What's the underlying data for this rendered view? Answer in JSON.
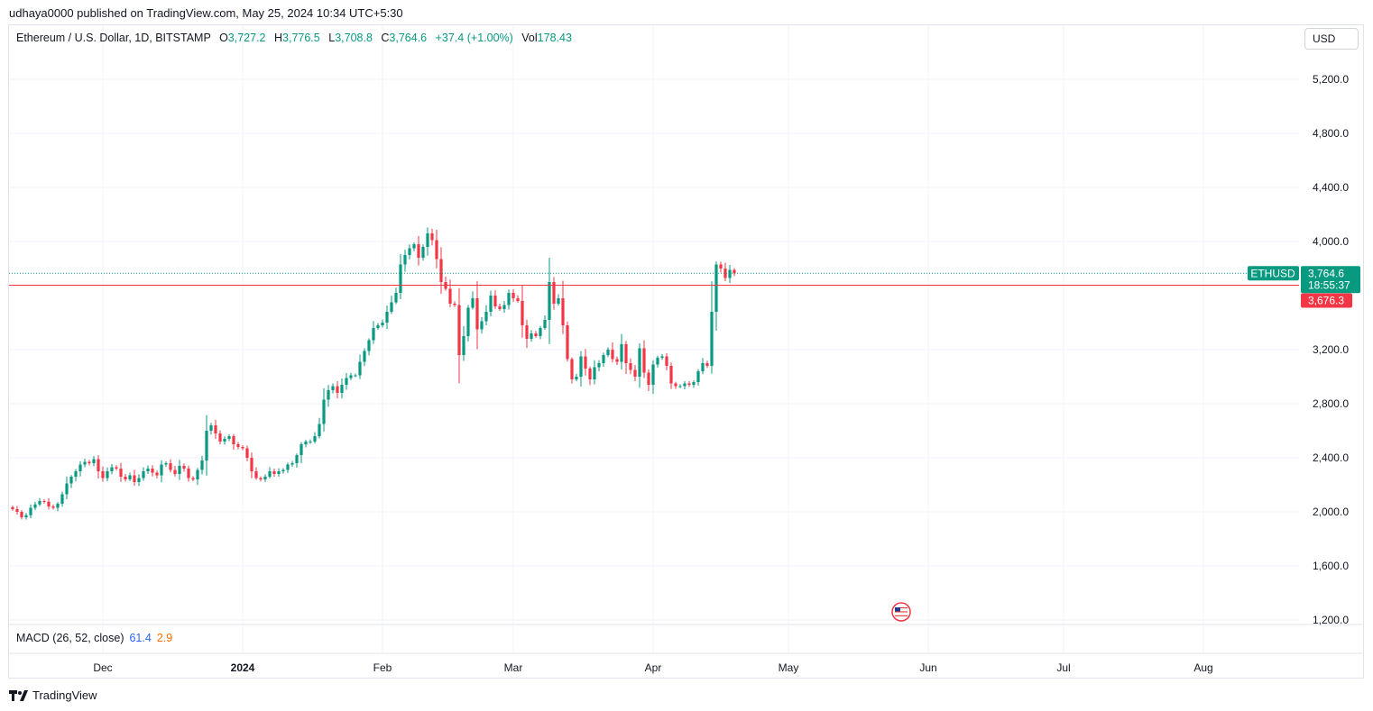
{
  "header": {
    "published": "udhaya0000 published on TradingView.com, May 25, 2024 10:34 UTC+5:30"
  },
  "legend": {
    "symbol": "Ethereum / U.S. Dollar, 1D, BITSTAMP",
    "o_label": "O",
    "o_value": "3,727.2",
    "h_label": "H",
    "h_value": "3,776.5",
    "l_label": "L",
    "l_value": "3,708.8",
    "c_label": "C",
    "c_value": "3,764.6",
    "change": "+37.4 (+1.00%)",
    "vol_label": "Vol",
    "vol_value": "178.43"
  },
  "currency_button": "USD",
  "macd": {
    "label": "MACD (26, 52, close)",
    "v1": "61.4",
    "v2": "2.9"
  },
  "brand": "TradingView",
  "colors": {
    "up": "#089981",
    "down": "#f23645",
    "grid": "#f0f3fa",
    "line": "#f23645"
  },
  "chart_data": {
    "type": "candlestick",
    "title": "Ethereum / U.S. Dollar, 1D, BITSTAMP",
    "ylim": [
      1100,
      5500
    ],
    "y_ticks": [
      {
        "value": 5200,
        "label": "5,200.0"
      },
      {
        "value": 4800,
        "label": "4,800.0"
      },
      {
        "value": 4400,
        "label": "4,400.0"
      },
      {
        "value": 4000,
        "label": "4,000.0"
      },
      {
        "value": 3200,
        "label": "3,200.0"
      },
      {
        "value": 2800,
        "label": "2,800.0"
      },
      {
        "value": 2400,
        "label": "2,400.0"
      },
      {
        "value": 2000,
        "label": "2,000.0"
      },
      {
        "value": 1600,
        "label": "1,600.0"
      },
      {
        "value": 1200,
        "label": "1,200.0"
      }
    ],
    "x_ticks": [
      {
        "day": 20,
        "label": "Dec",
        "bold": false
      },
      {
        "day": 51,
        "label": "2024",
        "bold": true
      },
      {
        "day": 82,
        "label": "Feb",
        "bold": false
      },
      {
        "day": 111,
        "label": "Mar",
        "bold": false
      },
      {
        "day": 142,
        "label": "Apr",
        "bold": false
      },
      {
        "day": 172,
        "label": "May",
        "bold": false
      },
      {
        "day": 203,
        "label": "Jun",
        "bold": false
      },
      {
        "day": 233,
        "label": "Jul",
        "bold": false
      },
      {
        "day": 264,
        "label": "Aug",
        "bold": false
      }
    ],
    "last_price": {
      "value": 3764.6,
      "label": "3,764.6",
      "countdown": "18:55:37",
      "symbol": "ETHUSD"
    },
    "horizontal_line": {
      "value": 3676.3,
      "label": "3,676.3"
    },
    "event_marker_day": 197,
    "closes": [
      2020,
      2000,
      1960,
      1975,
      2030,
      2055,
      2080,
      2075,
      2040,
      2030,
      2060,
      2130,
      2210,
      2260,
      2300,
      2350,
      2370,
      2360,
      2390,
      2300,
      2250,
      2300,
      2330,
      2320,
      2260,
      2240,
      2270,
      2220,
      2250,
      2300,
      2320,
      2290,
      2270,
      2350,
      2360,
      2310,
      2280,
      2340,
      2320,
      2250,
      2240,
      2310,
      2380,
      2600,
      2640,
      2580,
      2520,
      2540,
      2560,
      2500,
      2480,
      2470,
      2400,
      2300,
      2250,
      2240,
      2260,
      2300,
      2280,
      2300,
      2310,
      2350,
      2360,
      2420,
      2500,
      2520,
      2520,
      2560,
      2650,
      2830,
      2900,
      2930,
      2880,
      2940,
      2990,
      3010,
      3010,
      3110,
      3190,
      3270,
      3360,
      3380,
      3400,
      3480,
      3550,
      3620,
      3830,
      3900,
      3950,
      3980,
      3880,
      3960,
      4060,
      4010,
      3870,
      3700,
      3650,
      3540,
      3530,
      3160,
      3300,
      3510,
      3580,
      3350,
      3410,
      3480,
      3600,
      3520,
      3500,
      3530,
      3620,
      3580,
      3560,
      3380,
      3280,
      3320,
      3300,
      3360,
      3420,
      3700,
      3540,
      3580,
      3380,
      3130,
      2980,
      3000,
      3150,
      3060,
      2980,
      3070,
      3100,
      3160,
      3200,
      3130,
      3110,
      3240,
      3100,
      3050,
      3000,
      3210,
      3030,
      2940,
      3090,
      3140,
      3150,
      3080,
      2950,
      2930,
      2930,
      2950,
      2940,
      2960,
      3040,
      3100,
      3080,
      3480,
      3830,
      3800,
      3730,
      3790,
      3764.6
    ]
  }
}
